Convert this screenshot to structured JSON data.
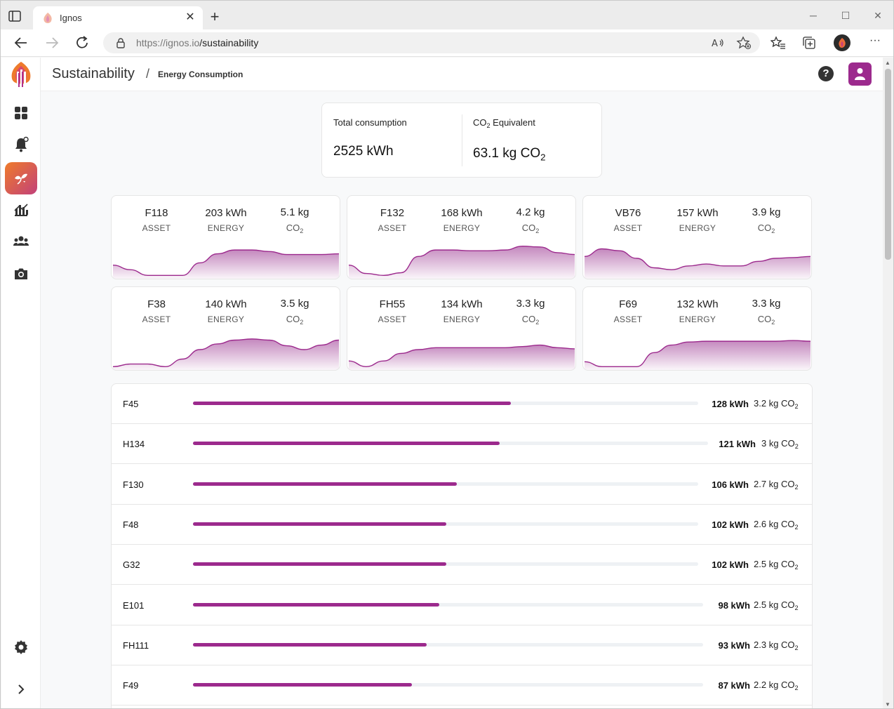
{
  "browser": {
    "tab_title": "Ignos",
    "url_host": "https://ignos.io",
    "url_path": "/sustainability"
  },
  "header": {
    "title": "Sustainability",
    "separator": "/",
    "breadcrumb": "Energy Consumption",
    "help_label": "?"
  },
  "summary": {
    "total_label": "Total consumption",
    "total_value": "2525 kWh",
    "co2_label_prefix": "CO",
    "co2_label_sub": "2",
    "co2_label_suffix": " Equivalent",
    "co2_value_prefix": "63.1 kg CO",
    "co2_value_sub": "2"
  },
  "labels": {
    "asset": "ASSET",
    "energy": "ENERGY",
    "co": "CO",
    "co_sub": "2"
  },
  "cards": [
    {
      "asset": "F118",
      "energy": "203 kWh",
      "co2": "5.1 kg",
      "trend": [
        0.32,
        0.2,
        0.05,
        0.05,
        0.05,
        0.38,
        0.62,
        0.72,
        0.72,
        0.68,
        0.6,
        0.6,
        0.6,
        0.62
      ]
    },
    {
      "asset": "F132",
      "energy": "168 kWh",
      "co2": "4.2 kg",
      "trend": [
        0.32,
        0.1,
        0.05,
        0.12,
        0.55,
        0.72,
        0.72,
        0.7,
        0.7,
        0.72,
        0.82,
        0.8,
        0.65,
        0.6
      ]
    },
    {
      "asset": "VB76",
      "energy": "157 kWh",
      "co2": "3.9 kg",
      "trend": [
        0.55,
        0.75,
        0.7,
        0.5,
        0.25,
        0.2,
        0.3,
        0.35,
        0.3,
        0.3,
        0.42,
        0.5,
        0.52,
        0.55
      ]
    },
    {
      "asset": "F38",
      "energy": "140 kWh",
      "co2": "3.5 kg",
      "trend": [
        0.05,
        0.12,
        0.12,
        0.05,
        0.25,
        0.5,
        0.65,
        0.75,
        0.78,
        0.75,
        0.6,
        0.5,
        0.62,
        0.75
      ]
    },
    {
      "asset": "FH55",
      "energy": "134 kWh",
      "co2": "3.3 kg",
      "trend": [
        0.2,
        0.05,
        0.2,
        0.4,
        0.5,
        0.55,
        0.55,
        0.55,
        0.55,
        0.55,
        0.58,
        0.62,
        0.55,
        0.52
      ]
    },
    {
      "asset": "F69",
      "energy": "132 kWh",
      "co2": "3.3 kg",
      "trend": [
        0.18,
        0.05,
        0.05,
        0.05,
        0.42,
        0.62,
        0.7,
        0.72,
        0.72,
        0.72,
        0.72,
        0.72,
        0.74,
        0.72
      ]
    }
  ],
  "rows": [
    {
      "name": "F45",
      "kwh": "128 kWh",
      "co2": "3.2 kg CO",
      "level": 0.629
    },
    {
      "name": "H134",
      "kwh": "121 kWh",
      "co2": "3 kg CO",
      "level": 0.596
    },
    {
      "name": "F130",
      "kwh": "106 kWh",
      "co2": "2.7 kg CO",
      "level": 0.522
    },
    {
      "name": "F48",
      "kwh": "102 kWh",
      "co2": "2.6 kg CO",
      "level": 0.502
    },
    {
      "name": "G32",
      "kwh": "102 kWh",
      "co2": "2.5 kg CO",
      "level": 0.502
    },
    {
      "name": "E101",
      "kwh": "98 kWh",
      "co2": "2.5 kg CO",
      "level": 0.483
    },
    {
      "name": "FH111",
      "kwh": "93 kWh",
      "co2": "2.3 kg CO",
      "level": 0.458
    },
    {
      "name": "F49",
      "kwh": "87 kWh",
      "co2": "2.2 kg CO",
      "level": 0.429
    }
  ],
  "colors": {
    "accent": "#9c2a8d",
    "accent_light": "#f6e9f4"
  }
}
